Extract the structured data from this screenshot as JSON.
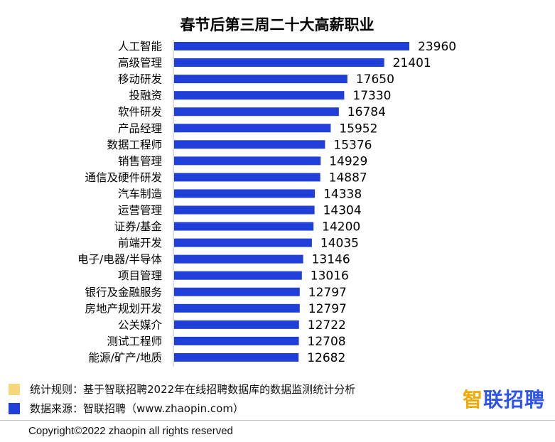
{
  "chart_data": {
    "type": "bar",
    "orientation": "horizontal",
    "title": "春节后第三周二十大高薪职业",
    "categories": [
      "人工智能",
      "高级管理",
      "移动研发",
      "投融资",
      "软件研发",
      "产品经理",
      "数据工程师",
      "销售管理",
      "通信及硬件研发",
      "汽车制造",
      "运营管理",
      "证券/基金",
      "前端开发",
      "电子/电器/半导体",
      "项目管理",
      "银行及金融服务",
      "房地产规划开发",
      "公关媒介",
      "测试工程师",
      "能源/矿产/地质"
    ],
    "values": [
      23960,
      21401,
      17650,
      17330,
      16784,
      15952,
      15376,
      14929,
      14887,
      14338,
      14304,
      14200,
      14035,
      13146,
      13016,
      12797,
      12797,
      12722,
      12708,
      12682
    ],
    "value_labels": [
      "23960",
      "21401",
      "17650",
      "17330",
      "16784",
      "15952",
      "15376",
      "14929",
      "14887",
      "14338",
      "14304",
      "14200",
      "14035",
      "13146",
      "13016",
      "12797",
      "12797",
      "12722",
      "12708",
      "12682"
    ],
    "bar_color": "#1f3fd8",
    "grid": false,
    "legend_position": "bottom-left"
  },
  "legend": {
    "rule_text": "统计规则：基于智联招聘2022年在线招聘数据库的数据监测统计分析",
    "rule_color": "#f6d77a",
    "source_text": "数据来源：智联招聘（www.zhaopin.com）",
    "source_color": "#1f3fd8"
  },
  "logo": {
    "char1": "智",
    "rest": "联招聘",
    "color": "#2f54eb",
    "accent_color": "#f2a900"
  },
  "footer": {
    "copyright": "Copyright©2022 zhaopin all rights reserved"
  }
}
